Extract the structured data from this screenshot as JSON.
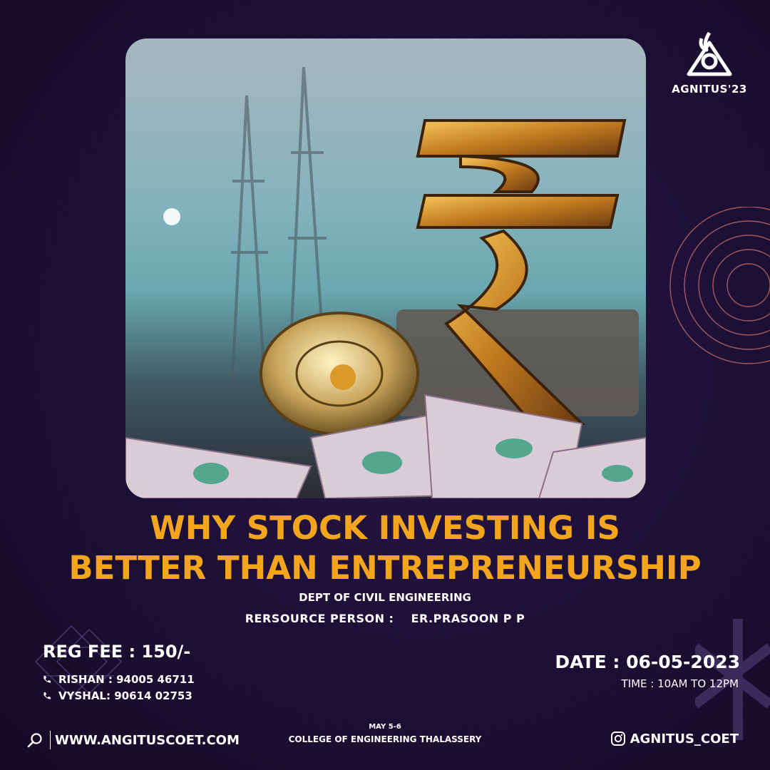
{
  "brand": {
    "name": "AGNITUS'23"
  },
  "hero": {
    "image_description": "golden rupee symbol with coins and banknotes",
    "icon": "rupee-symbol-icon"
  },
  "event": {
    "title_line1": "WHY STOCK INVESTING IS",
    "title_line2": "BETTER THAN ENTREPRENEURSHIP",
    "department": "DEPT OF CIVIL ENGINEERING",
    "resource_label": "RERSOURCE PERSON :",
    "resource_name": "ER.PRASOON P P"
  },
  "registration": {
    "fee": "REG FEE : 150/-",
    "contacts": [
      {
        "text": "RISHAN : 94005 46711",
        "icon": "phone-icon"
      },
      {
        "text": "VYSHAL: 90614 02753",
        "icon": "phone-icon"
      }
    ]
  },
  "schedule": {
    "date": "DATE : 06-05-2023",
    "time": "TIME : 10AM TO 12PM"
  },
  "footer": {
    "website": "WWW.ANGITUSCOET.COM",
    "dates": "MAY 5-6",
    "college": "COLLEGE OF ENGINEERING THALASSERY",
    "instagram": "AGNITUS_COET"
  },
  "colors": {
    "background": "#1e1038",
    "title": "#f3a51e",
    "text": "#ffffff",
    "accent_circles": "#c56b6b"
  }
}
